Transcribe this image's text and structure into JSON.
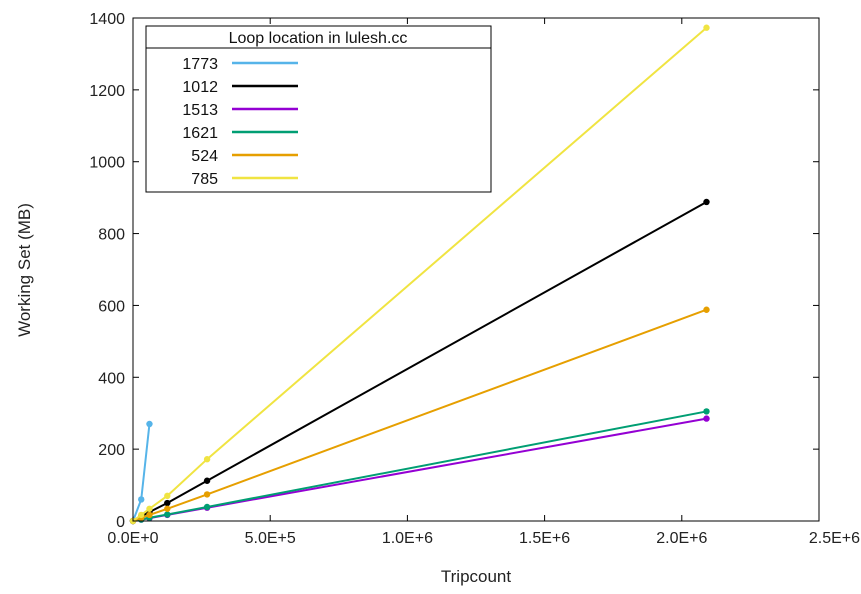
{
  "chart_data": {
    "type": "line",
    "xlabel": "Tripcount",
    "ylabel": "Working Set (MB)",
    "xlim": [
      0,
      2500000
    ],
    "ylim": [
      0,
      1400
    ],
    "x_ticks": [
      0,
      500000,
      1000000,
      1500000,
      2000000,
      2500000
    ],
    "x_tick_labels": [
      "0.0E+0",
      "5.0E+5",
      "1.0E+6",
      "1.5E+6",
      "2.0E+6",
      "2.5E+6"
    ],
    "y_ticks": [
      0,
      200,
      400,
      600,
      800,
      1000,
      1200,
      1400
    ],
    "y_tick_labels": [
      "0",
      "200",
      "400",
      "600",
      "800",
      "1000",
      "1200",
      "1400"
    ],
    "grid": false,
    "legend": {
      "title": "Loop location in lulesh.cc",
      "placement": "top-left"
    },
    "series": [
      {
        "name": "1773",
        "color": "#56b4e9",
        "points": [
          [
            0,
            0
          ],
          [
            30000,
            60
          ],
          [
            60000,
            270
          ]
        ]
      },
      {
        "name": "1012",
        "color": "#000000",
        "points": [
          [
            0,
            0
          ],
          [
            30000,
            13
          ],
          [
            60000,
            25
          ],
          [
            125000,
            50
          ],
          [
            270000,
            112
          ],
          [
            2090000,
            888
          ]
        ]
      },
      {
        "name": "1513",
        "color": "#9400d3",
        "points": [
          [
            0,
            0
          ],
          [
            30000,
            4
          ],
          [
            60000,
            8
          ],
          [
            125000,
            17
          ],
          [
            270000,
            37
          ],
          [
            2090000,
            285
          ]
        ]
      },
      {
        "name": "1621",
        "color": "#009e73",
        "points": [
          [
            0,
            0
          ],
          [
            30000,
            4
          ],
          [
            60000,
            9
          ],
          [
            125000,
            18
          ],
          [
            270000,
            39
          ],
          [
            2090000,
            305
          ]
        ]
      },
      {
        "name": "524",
        "color": "#e69f00",
        "points": [
          [
            0,
            0
          ],
          [
            30000,
            9
          ],
          [
            60000,
            17
          ],
          [
            125000,
            34
          ],
          [
            270000,
            74
          ],
          [
            2090000,
            588
          ]
        ]
      },
      {
        "name": "785",
        "color": "#f0e442",
        "points": [
          [
            0,
            0
          ],
          [
            30000,
            17
          ],
          [
            60000,
            34
          ],
          [
            125000,
            70
          ],
          [
            270000,
            172
          ],
          [
            2090000,
            1373
          ]
        ]
      }
    ]
  }
}
